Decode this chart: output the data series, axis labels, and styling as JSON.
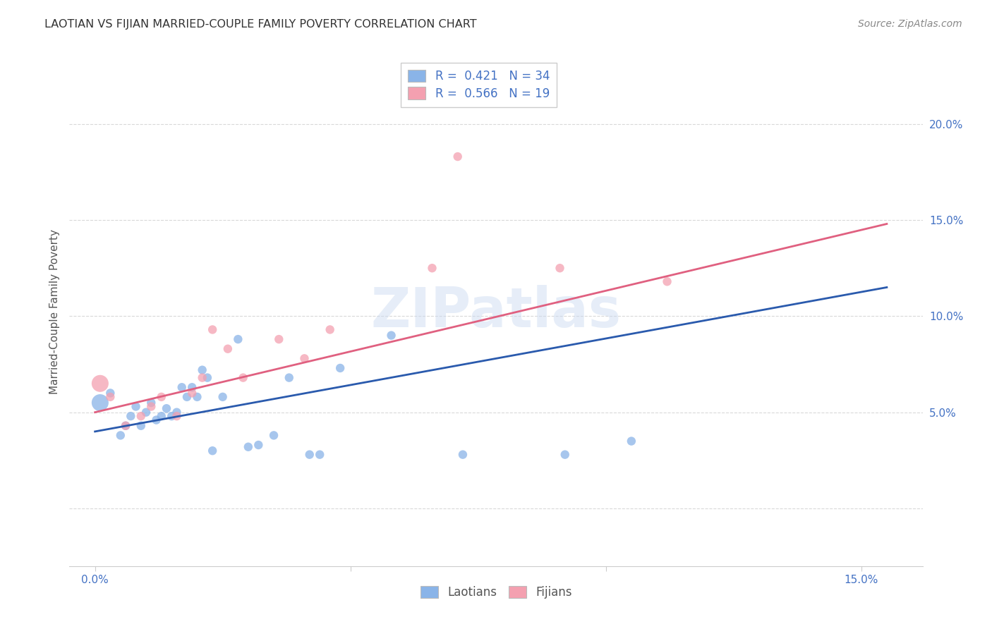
{
  "title": "LAOTIAN VS FIJIAN MARRIED-COUPLE FAMILY POVERTY CORRELATION CHART",
  "source": "Source: ZipAtlas.com",
  "ylabel_label": "Married-Couple Family Poverty",
  "x_ticks": [
    0.0,
    0.05,
    0.1,
    0.15
  ],
  "x_tick_labels": [
    "0.0%",
    "",
    "",
    "15.0%"
  ],
  "y_ticks": [
    0.0,
    0.05,
    0.1,
    0.15,
    0.2
  ],
  "y_tick_labels": [
    "",
    "5.0%",
    "10.0%",
    "15.0%",
    "20.0%"
  ],
  "xlim": [
    -0.005,
    0.162
  ],
  "ylim": [
    -0.03,
    0.235
  ],
  "r_laotian": 0.421,
  "n_laotian": 34,
  "r_fijian": 0.566,
  "n_fijian": 19,
  "laotian_color": "#8ab4e8",
  "fijian_color": "#f4a0b0",
  "laotian_line_color": "#2a5aad",
  "fijian_line_color": "#e06080",
  "background_color": "#ffffff",
  "grid_color": "#d0d0d0",
  "watermark_text": "ZIPatlas",
  "laotian_x": [
    0.001,
    0.003,
    0.005,
    0.006,
    0.007,
    0.008,
    0.009,
    0.01,
    0.011,
    0.012,
    0.013,
    0.014,
    0.015,
    0.016,
    0.017,
    0.018,
    0.019,
    0.02,
    0.021,
    0.022,
    0.023,
    0.025,
    0.028,
    0.03,
    0.032,
    0.035,
    0.038,
    0.042,
    0.044,
    0.048,
    0.058,
    0.072,
    0.092,
    0.105
  ],
  "laotian_y": [
    0.055,
    0.06,
    0.038,
    0.043,
    0.048,
    0.053,
    0.043,
    0.05,
    0.055,
    0.046,
    0.048,
    0.052,
    0.048,
    0.05,
    0.063,
    0.058,
    0.063,
    0.058,
    0.072,
    0.068,
    0.03,
    0.058,
    0.088,
    0.032,
    0.033,
    0.038,
    0.068,
    0.028,
    0.028,
    0.073,
    0.09,
    0.028,
    0.028,
    0.035
  ],
  "laotian_size": [
    300,
    80,
    80,
    80,
    80,
    80,
    80,
    80,
    80,
    80,
    80,
    80,
    80,
    80,
    80,
    80,
    80,
    80,
    80,
    80,
    80,
    80,
    80,
    80,
    80,
    80,
    80,
    80,
    80,
    80,
    80,
    80,
    80,
    80
  ],
  "fijian_x": [
    0.001,
    0.003,
    0.006,
    0.009,
    0.011,
    0.013,
    0.016,
    0.019,
    0.021,
    0.023,
    0.026,
    0.029,
    0.036,
    0.041,
    0.046,
    0.066,
    0.071,
    0.091,
    0.112
  ],
  "fijian_y": [
    0.065,
    0.058,
    0.043,
    0.048,
    0.053,
    0.058,
    0.048,
    0.06,
    0.068,
    0.093,
    0.083,
    0.068,
    0.088,
    0.078,
    0.093,
    0.125,
    0.183,
    0.125,
    0.118
  ],
  "fijian_size": [
    300,
    80,
    80,
    80,
    80,
    80,
    80,
    80,
    80,
    80,
    80,
    80,
    80,
    80,
    80,
    80,
    80,
    80,
    80
  ],
  "laotian_line_x0": 0.0,
  "laotian_line_y0": 0.04,
  "laotian_line_x1": 0.155,
  "laotian_line_y1": 0.115,
  "fijian_line_x0": 0.0,
  "fijian_line_y0": 0.05,
  "fijian_line_x1": 0.155,
  "fijian_line_y1": 0.148,
  "legend_label_blue": "Laotians",
  "legend_label_pink": "Fijians"
}
